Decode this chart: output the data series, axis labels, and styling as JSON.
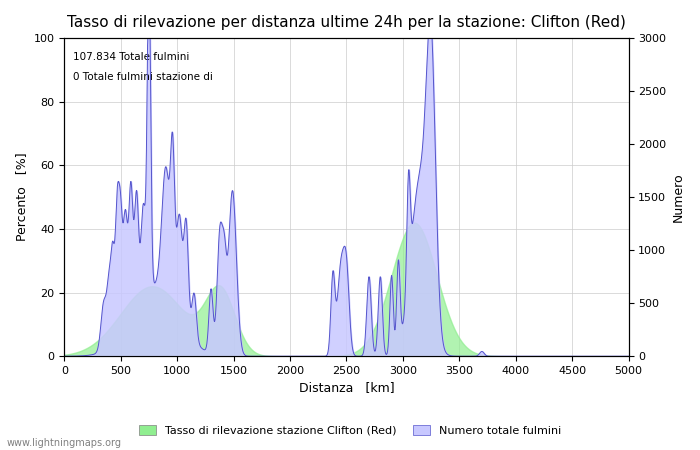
{
  "title": "Tasso di rilevazione per distanza ultime 24h per la stazione: Clifton (Red)",
  "xlabel": "Distanza   [km]",
  "ylabel_left": "Percento   [%]",
  "ylabel_right": "Numero",
  "annotation_line1": "107.834 Totale fulmini",
  "annotation_line2": "0 Totale fulmini stazione di",
  "xlim": [
    0,
    5000
  ],
  "ylim_left": [
    0,
    100
  ],
  "ylim_right": [
    0,
    3000
  ],
  "xticks": [
    0,
    500,
    1000,
    1500,
    2000,
    2500,
    3000,
    3500,
    4000,
    4500,
    5000
  ],
  "yticks_left": [
    0,
    20,
    40,
    60,
    80,
    100
  ],
  "yticks_right": [
    0,
    500,
    1000,
    1500,
    2000,
    2500,
    3000
  ],
  "legend_label_green": "Tasso di rilevazione stazione Clifton (Red)",
  "legend_label_blue": "Numero totale fulmini",
  "watermark": "www.lightningmaps.org",
  "fill_green_color": "#90EE90",
  "fill_blue_color": "#c8c8ff",
  "line_blue_color": "#5555cc",
  "background_color": "#ffffff",
  "grid_color": "#cccccc",
  "title_fontsize": 11,
  "label_fontsize": 9,
  "tick_fontsize": 8
}
